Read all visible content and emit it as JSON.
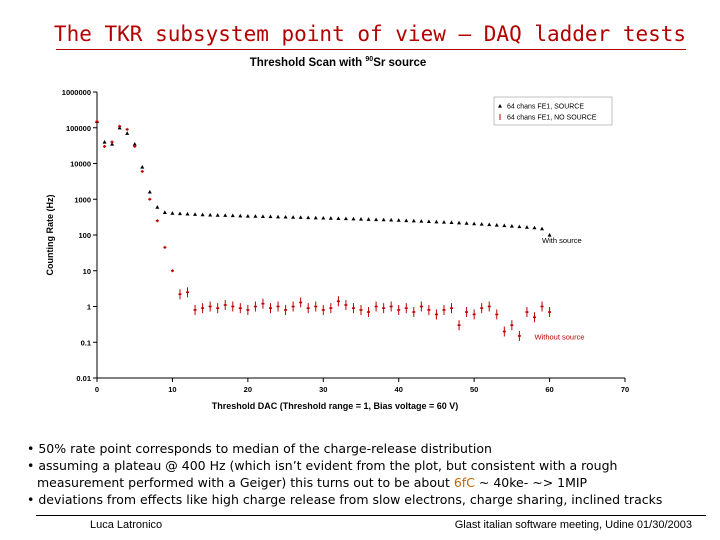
{
  "slide": {
    "title": "The TKR subsystem point of view – DAQ ladder tests",
    "footer_left": "Luca Latronico",
    "footer_right": "Glast italian software meeting, Udine 01/30/2003"
  },
  "bullets": [
    {
      "text": "• 50% rate point corresponds to median of the charge-release distribution"
    },
    {
      "text": "• assuming a plateau @ 400 Hz (which isn’t evident from the plot, but consistent with a rough"
    },
    {
      "text": "measurement performed with a Geiger) this turns out to be about ",
      "highlight": "6fC",
      "after": " ~ 40ke- ~> 1MIP"
    },
    {
      "text": "• deviations from effects like high charge release from slow electrons, charge sharing, inclined tracks"
    }
  ],
  "chart_data": {
    "type": "scatter",
    "title": "Threshold Scan with ",
    "title_sup": "90",
    "title_after": "Sr source",
    "xlabel": "Threshold DAC (Threshold range = 1, Bias voltage = 60 V)",
    "ylabel": "Counting Rate (Hz)",
    "xlim": [
      0,
      70
    ],
    "ylim": [
      0.01,
      1000000
    ],
    "yscale": "log",
    "xticks": [
      0,
      10,
      20,
      30,
      40,
      50,
      60,
      70
    ],
    "yticks": [
      {
        "v": 0.01,
        "label": "0.01"
      },
      {
        "v": 0.1,
        "label": "0.1"
      },
      {
        "v": 1,
        "label": "1"
      },
      {
        "v": 10,
        "label": "10"
      },
      {
        "v": 100,
        "label": "100"
      },
      {
        "v": 1000,
        "label": "1000"
      },
      {
        "v": 10000,
        "label": "10000"
      },
      {
        "v": 100000,
        "label": "100000"
      },
      {
        "v": 1000000,
        "label": "1000000"
      }
    ],
    "legend_position": "top-right",
    "annotations": [
      {
        "text": "With source",
        "x": 59,
        "y": 60,
        "color": "#000000"
      },
      {
        "text": "Without source",
        "x": 58,
        "y": 0.12,
        "color": "#c00000"
      }
    ],
    "series": [
      {
        "name": "64 chans FE1, SOURCE",
        "color": "#000000",
        "marker": "triangle",
        "x": [
          0,
          1,
          2,
          3,
          4,
          5,
          6,
          7,
          8,
          9,
          10,
          11,
          12,
          13,
          14,
          15,
          16,
          17,
          18,
          19,
          20,
          21,
          22,
          23,
          24,
          25,
          26,
          27,
          28,
          29,
          30,
          31,
          32,
          33,
          34,
          35,
          36,
          37,
          38,
          39,
          40,
          41,
          42,
          43,
          44,
          45,
          46,
          47,
          48,
          49,
          50,
          51,
          52,
          53,
          54,
          55,
          56,
          57,
          58,
          59,
          60
        ],
        "y": [
          150000,
          40000,
          35000,
          100000,
          70000,
          35000,
          8000,
          1600,
          600,
          430,
          410,
          400,
          390,
          380,
          370,
          365,
          360,
          355,
          350,
          345,
          340,
          336,
          332,
          328,
          324,
          320,
          316,
          312,
          308,
          304,
          300,
          296,
          292,
          288,
          284,
          280,
          276,
          272,
          268,
          264,
          260,
          255,
          250,
          245,
          240,
          235,
          230,
          225,
          220,
          214,
          208,
          202,
          196,
          190,
          184,
          178,
          172,
          166,
          160,
          150,
          100
        ]
      },
      {
        "name": "64 chans FE1, NO SOURCE",
        "color": "#c00000",
        "marker": "dash",
        "x": [
          0,
          1,
          2,
          3,
          4,
          5,
          6,
          7,
          8,
          9,
          10,
          11,
          12,
          13,
          14,
          15,
          16,
          17,
          18,
          19,
          20,
          21,
          22,
          23,
          24,
          25,
          26,
          27,
          28,
          29,
          30,
          31,
          32,
          33,
          34,
          35,
          36,
          37,
          38,
          39,
          40,
          41,
          42,
          43,
          44,
          45,
          46,
          47,
          48,
          49,
          50,
          51,
          52,
          53,
          54,
          55,
          56,
          57,
          58,
          59,
          60
        ],
        "y": [
          150000,
          30000,
          40000,
          110000,
          90000,
          30000,
          6000,
          1000,
          250,
          45,
          10,
          2.2,
          2.5,
          0.8,
          0.9,
          1.0,
          0.9,
          1.1,
          1.0,
          0.9,
          0.8,
          1.0,
          1.2,
          0.9,
          1.0,
          0.8,
          1.0,
          1.3,
          0.9,
          1.0,
          0.8,
          0.9,
          1.4,
          1.1,
          0.9,
          0.8,
          0.7,
          1.0,
          0.9,
          1.0,
          0.8,
          0.9,
          0.7,
          1.0,
          0.8,
          0.6,
          0.8,
          0.9,
          0.3,
          0.7,
          0.6,
          0.9,
          1.0,
          0.6,
          0.2,
          0.3,
          0.15,
          0.7,
          0.5,
          1.0,
          0.7
        ]
      }
    ]
  }
}
